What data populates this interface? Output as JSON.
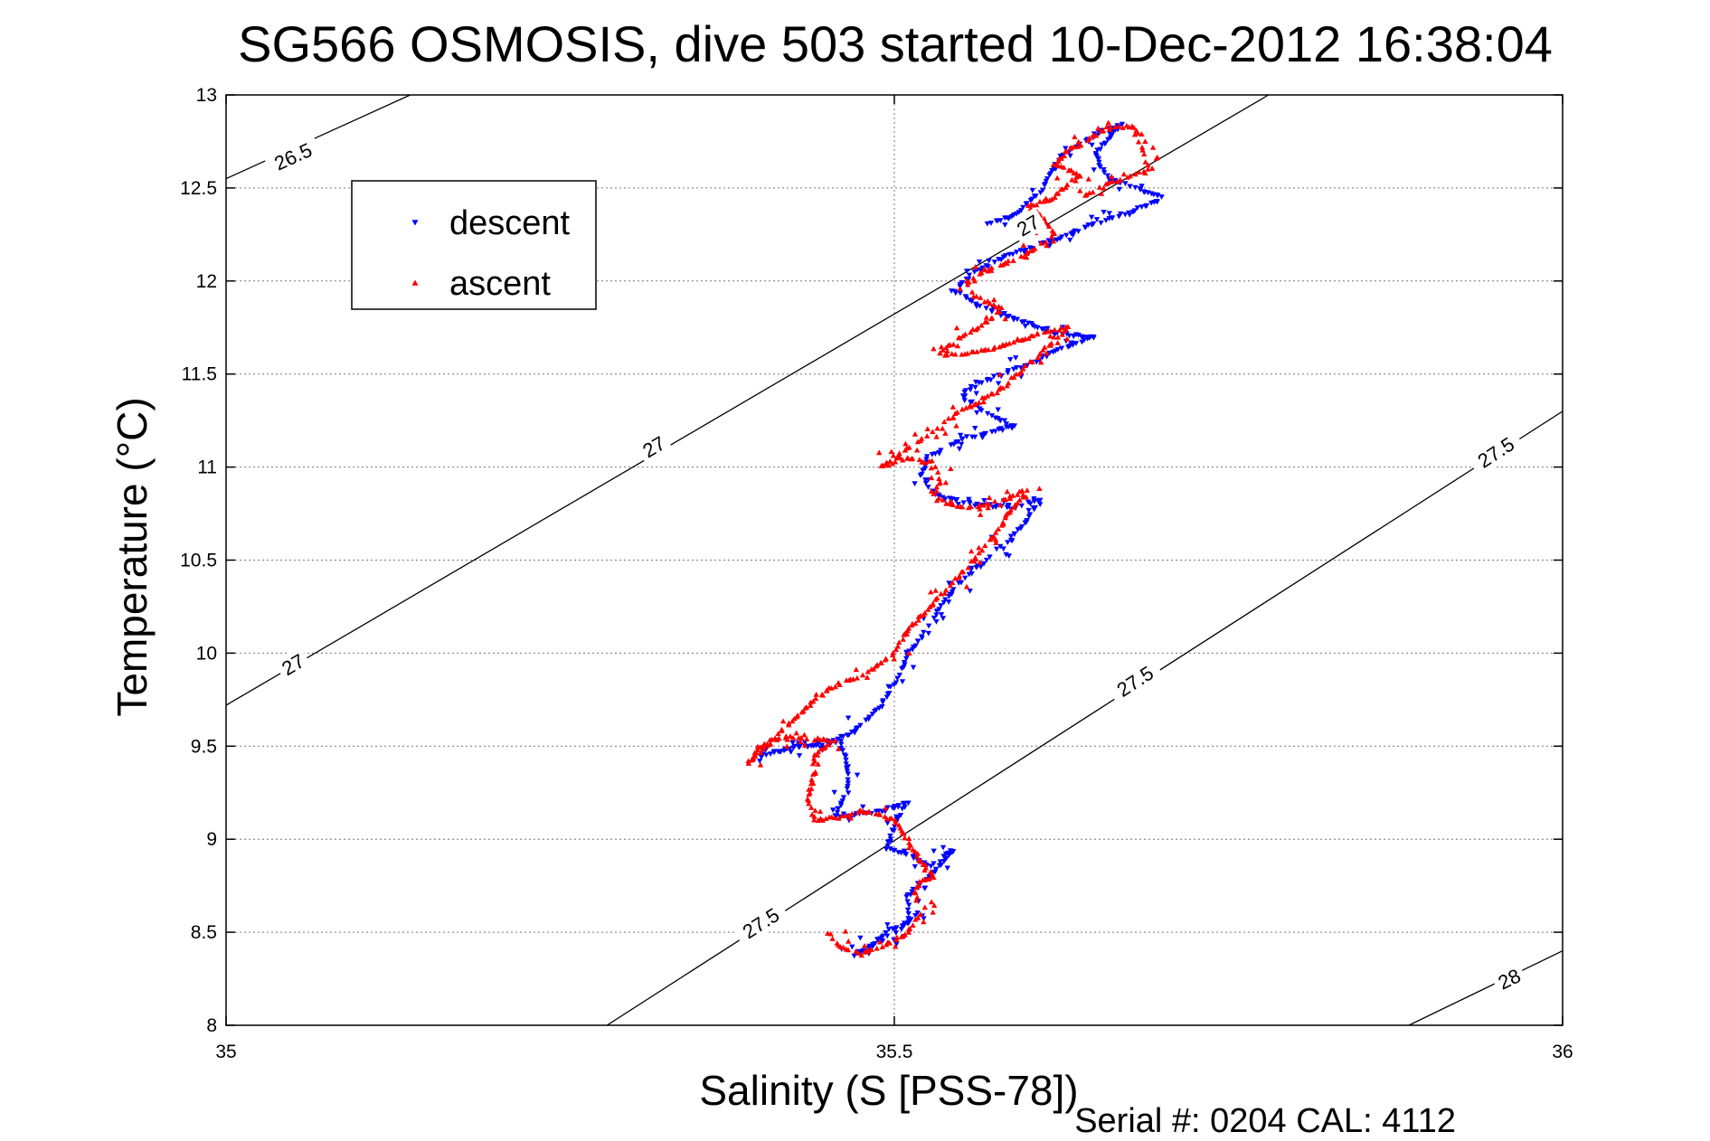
{
  "chart_data": {
    "type": "scatter",
    "title": "SG566 OSMOSIS, dive 503 started 10-Dec-2012 16:38:04",
    "xlabel": "Salinity (S [PSS-78])",
    "ylabel": "Temperature (°C)",
    "xlim": [
      35,
      36
    ],
    "ylim": [
      8,
      13
    ],
    "xticks": [
      "35",
      "35.5",
      "36"
    ],
    "yticks": [
      "8",
      "8.5",
      "9",
      "9.5",
      "10",
      "10.5",
      "11",
      "11.5",
      "12",
      "12.5",
      "13"
    ],
    "grid": true,
    "legend_position": "top-left",
    "footer": "Serial #: 0204  CAL: 4112",
    "colors": {
      "descent": "#0000ff",
      "ascent": "#ff0000",
      "contour": "#000000"
    },
    "density_contours": [
      {
        "label": "26.5",
        "points": [
          [
            35.0,
            12.55
          ],
          [
            35.1378,
            13.0
          ]
        ],
        "label_at": [
          [
            35.05,
            12.67
          ]
        ]
      },
      {
        "label": "27",
        "points": [
          [
            35.0,
            9.72
          ],
          [
            35.78,
            13.0
          ]
        ],
        "label_at": [
          [
            35.05,
            9.94
          ],
          [
            35.32,
            11.11
          ],
          [
            35.6,
            12.3
          ]
        ]
      },
      {
        "label": "27.5",
        "points": [
          [
            35.285,
            8.0
          ],
          [
            36.0,
            11.3
          ]
        ],
        "label_at": [
          [
            35.4,
            8.55
          ],
          [
            35.68,
            9.85
          ],
          [
            35.95,
            11.08
          ]
        ]
      },
      {
        "label": "28",
        "points": [
          [
            35.885,
            8.0
          ],
          [
            36.0,
            8.4
          ]
        ],
        "label_at": [
          [
            35.96,
            8.25
          ]
        ]
      }
    ],
    "series": [
      {
        "name": "descent",
        "marker": "triangle-down",
        "path": [
          [
            35.57,
            12.31
          ],
          [
            35.59,
            12.35
          ],
          [
            35.6,
            12.42
          ],
          [
            35.61,
            12.48
          ],
          [
            35.615,
            12.55
          ],
          [
            35.62,
            12.63
          ],
          [
            35.63,
            12.7
          ],
          [
            35.66,
            12.82
          ],
          [
            35.67,
            12.84
          ],
          [
            35.65,
            12.68
          ],
          [
            35.66,
            12.55
          ],
          [
            35.68,
            12.5
          ],
          [
            35.7,
            12.45
          ],
          [
            35.68,
            12.38
          ],
          [
            35.66,
            12.33
          ],
          [
            35.64,
            12.28
          ],
          [
            35.62,
            12.22
          ],
          [
            35.59,
            12.15
          ],
          [
            35.56,
            12.05
          ],
          [
            35.545,
            11.95
          ],
          [
            35.56,
            11.88
          ],
          [
            35.59,
            11.8
          ],
          [
            35.62,
            11.72
          ],
          [
            35.65,
            11.7
          ],
          [
            35.62,
            11.62
          ],
          [
            35.6,
            11.55
          ],
          [
            35.57,
            11.47
          ],
          [
            35.55,
            11.4
          ],
          [
            35.565,
            11.3
          ],
          [
            35.59,
            11.22
          ],
          [
            35.55,
            11.15
          ],
          [
            35.525,
            11.05
          ],
          [
            35.52,
            10.95
          ],
          [
            35.53,
            10.85
          ],
          [
            35.56,
            10.8
          ],
          [
            35.59,
            10.78
          ],
          [
            35.61,
            10.83
          ],
          [
            35.6,
            10.72
          ],
          [
            35.585,
            10.6
          ],
          [
            35.57,
            10.5
          ],
          [
            35.555,
            10.42
          ],
          [
            35.545,
            10.35
          ],
          [
            35.535,
            10.25
          ],
          [
            35.525,
            10.15
          ],
          [
            35.52,
            10.08
          ],
          [
            35.51,
            10.0
          ],
          [
            35.505,
            9.9
          ],
          [
            35.49,
            9.72
          ],
          [
            35.48,
            9.65
          ],
          [
            35.47,
            9.58
          ],
          [
            35.455,
            9.53
          ],
          [
            35.42,
            9.48
          ],
          [
            35.4,
            9.45
          ],
          [
            35.43,
            9.5
          ],
          [
            35.46,
            9.52
          ],
          [
            35.465,
            9.38
          ],
          [
            35.465,
            9.25
          ],
          [
            35.455,
            9.12
          ],
          [
            35.47,
            9.13
          ],
          [
            35.49,
            9.15
          ],
          [
            35.51,
            9.2
          ],
          [
            35.5,
            9.08
          ],
          [
            35.495,
            8.95
          ],
          [
            35.515,
            8.9
          ],
          [
            35.525,
            8.85
          ],
          [
            35.535,
            8.9
          ],
          [
            35.545,
            8.95
          ],
          [
            35.525,
            8.78
          ],
          [
            35.51,
            8.7
          ],
          [
            35.51,
            8.55
          ],
          [
            35.495,
            8.5
          ],
          [
            35.48,
            8.42
          ],
          [
            35.47,
            8.38
          ],
          [
            35.49,
            8.45
          ],
          [
            35.51,
            8.55
          ],
          [
            35.52,
            8.62
          ]
        ]
      },
      {
        "name": "ascent",
        "marker": "triangle-up",
        "path": [
          [
            35.45,
            8.5
          ],
          [
            35.46,
            8.42
          ],
          [
            35.475,
            8.38
          ],
          [
            35.49,
            8.42
          ],
          [
            35.51,
            8.5
          ],
          [
            35.52,
            8.6
          ],
          [
            35.515,
            8.72
          ],
          [
            35.52,
            8.78
          ],
          [
            35.53,
            8.8
          ],
          [
            35.52,
            8.88
          ],
          [
            35.51,
            9.0
          ],
          [
            35.5,
            9.1
          ],
          [
            35.48,
            9.15
          ],
          [
            35.46,
            9.12
          ],
          [
            35.44,
            9.1
          ],
          [
            35.435,
            9.22
          ],
          [
            35.44,
            9.35
          ],
          [
            35.44,
            9.45
          ],
          [
            35.455,
            9.53
          ],
          [
            35.42,
            9.55
          ],
          [
            35.4,
            9.5
          ],
          [
            35.395,
            9.45
          ],
          [
            35.39,
            9.4
          ],
          [
            35.41,
            9.55
          ],
          [
            35.43,
            9.68
          ],
          [
            35.45,
            9.8
          ],
          [
            35.48,
            9.9
          ],
          [
            35.5,
            10.0
          ],
          [
            35.51,
            10.12
          ],
          [
            35.52,
            10.2
          ],
          [
            35.54,
            10.35
          ],
          [
            35.56,
            10.5
          ],
          [
            35.575,
            10.63
          ],
          [
            35.59,
            10.8
          ],
          [
            35.6,
            10.88
          ],
          [
            35.58,
            10.82
          ],
          [
            35.56,
            10.78
          ],
          [
            35.54,
            10.8
          ],
          [
            35.53,
            10.85
          ],
          [
            35.535,
            10.95
          ],
          [
            35.53,
            11.02
          ],
          [
            35.51,
            11.05
          ],
          [
            35.49,
            11.0
          ],
          [
            35.51,
            11.1
          ],
          [
            35.53,
            11.2
          ],
          [
            35.55,
            11.3
          ],
          [
            35.57,
            11.38
          ],
          [
            35.58,
            11.42
          ],
          [
            35.6,
            11.55
          ],
          [
            35.62,
            11.68
          ],
          [
            35.63,
            11.75
          ],
          [
            35.61,
            11.72
          ],
          [
            35.58,
            11.65
          ],
          [
            35.56,
            11.62
          ],
          [
            35.54,
            11.6
          ],
          [
            35.535,
            11.62
          ],
          [
            35.55,
            11.7
          ],
          [
            35.57,
            11.78
          ],
          [
            35.58,
            11.85
          ],
          [
            35.56,
            11.92
          ],
          [
            35.555,
            11.98
          ],
          [
            35.565,
            12.05
          ],
          [
            35.58,
            12.08
          ],
          [
            35.6,
            12.15
          ],
          [
            35.62,
            12.25
          ],
          [
            35.61,
            12.35
          ],
          [
            35.6,
            12.4
          ],
          [
            35.62,
            12.45
          ],
          [
            35.63,
            12.52
          ],
          [
            35.64,
            12.57
          ],
          [
            35.62,
            12.62
          ],
          [
            35.63,
            12.7
          ],
          [
            35.65,
            12.78
          ],
          [
            35.66,
            12.83
          ],
          [
            35.68,
            12.83
          ],
          [
            35.69,
            12.6
          ],
          [
            35.66,
            12.52
          ],
          [
            35.64,
            12.45
          ]
        ]
      }
    ]
  }
}
